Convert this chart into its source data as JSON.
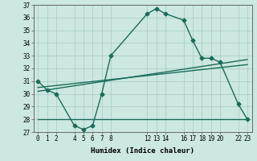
{
  "xlabel": "Humidex (Indice chaleur)",
  "background_color": "#cce8e0",
  "grid_color": "#aacfc8",
  "line_color": "#1a6b5a",
  "xlim": [
    -0.5,
    23.5
  ],
  "ylim": [
    27,
    37
  ],
  "yticks": [
    27,
    28,
    29,
    30,
    31,
    32,
    33,
    34,
    35,
    36,
    37
  ],
  "xtick_positions": [
    0,
    1,
    2,
    4,
    5,
    6,
    7,
    8,
    12,
    13,
    14,
    16,
    17,
    18,
    19,
    20,
    22,
    23
  ],
  "xtick_labels": [
    "0",
    "1",
    "2",
    "4",
    "5",
    "6",
    "7",
    "8",
    "12",
    "13",
    "14",
    "16",
    "17",
    "18",
    "19",
    "20",
    "22",
    "23"
  ],
  "series1_x": [
    0,
    1,
    2,
    4,
    5,
    6,
    7,
    8,
    12,
    13,
    14,
    16,
    17,
    18,
    19,
    20,
    22,
    23
  ],
  "series1_y": [
    31.0,
    30.3,
    30.0,
    27.5,
    27.2,
    27.5,
    30.0,
    33.0,
    36.3,
    36.7,
    36.3,
    35.8,
    34.2,
    32.8,
    32.8,
    32.5,
    29.2,
    28.0
  ],
  "series2_x": [
    0,
    8,
    23
  ],
  "series2_y": [
    28.0,
    28.0,
    28.0
  ],
  "series3_x": [
    0,
    23
  ],
  "series3_y": [
    30.2,
    32.7
  ],
  "series4_x": [
    0,
    23
  ],
  "series4_y": [
    30.5,
    32.3
  ],
  "markersize": 2.5,
  "linewidth": 1.0
}
